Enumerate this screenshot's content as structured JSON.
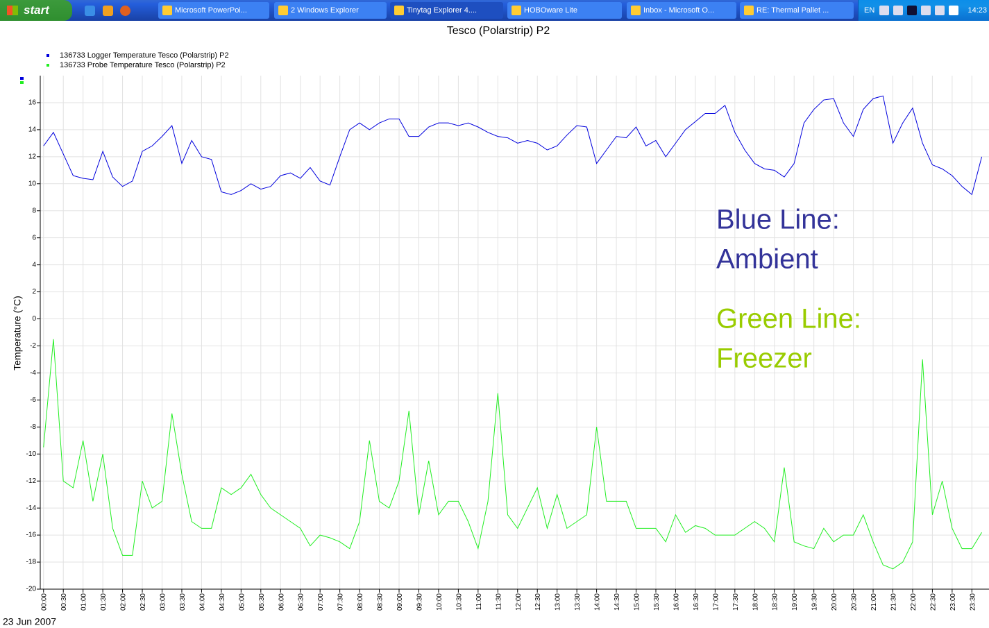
{
  "taskbar": {
    "start": "start",
    "tasks": [
      "Microsoft PowerPoi...",
      "2 Windows Explorer",
      "Tinytag Explorer 4....",
      "HOBOware Lite",
      "Inbox - Microsoft O...",
      "RE: Thermal Pallet ..."
    ],
    "language": "EN",
    "clock": "14:23"
  },
  "chart_data": {
    "type": "line",
    "title": "Tesco (Polarstrip) P2",
    "y_label": "Temperature (°C)",
    "date_label": "23 Jun 2007",
    "annotations": [
      {
        "text": [
          "Blue Line:",
          "Ambient"
        ],
        "color": "#333399"
      },
      {
        "text": [
          "Green Line:",
          "Freezer"
        ],
        "color": "#99cc00"
      }
    ],
    "x": [
      0,
      15,
      30,
      45,
      60,
      75,
      90,
      105,
      120,
      135,
      150,
      165,
      180,
      195,
      210,
      225,
      240,
      255,
      270,
      285,
      300,
      315,
      330,
      345,
      360,
      375,
      390,
      405,
      420,
      435,
      450,
      465,
      480,
      495,
      510,
      525,
      540,
      555,
      570,
      585,
      600,
      615,
      630,
      645,
      660,
      675,
      690,
      705,
      720,
      735,
      750,
      765,
      780,
      795,
      810,
      825,
      840,
      855,
      870,
      885,
      900,
      915,
      930,
      945,
      960,
      975,
      990,
      1005,
      1020,
      1035,
      1050,
      1065,
      1080,
      1095,
      1110,
      1125,
      1140,
      1155,
      1170,
      1185,
      1200,
      1215,
      1230,
      1245,
      1260,
      1275,
      1290,
      1305,
      1320,
      1335,
      1350,
      1365,
      1380,
      1395,
      1410,
      1425
    ],
    "series": [
      {
        "name": "136733 Logger Temperature Tesco (Polarstrip) P2",
        "color": "#0000dd",
        "values": [
          12.8,
          13.8,
          12.2,
          10.6,
          10.4,
          10.3,
          12.4,
          10.5,
          9.8,
          10.2,
          12.4,
          12.8,
          13.5,
          14.3,
          11.5,
          13.2,
          12.0,
          11.8,
          9.4,
          9.2,
          9.5,
          10,
          9.6,
          9.8,
          10.6,
          10.8,
          10.4,
          11.2,
          10.2,
          9.9,
          12,
          14,
          14.5,
          14,
          14.5,
          14.8,
          14.8,
          13.5,
          13.5,
          14.2,
          14.5,
          14.5,
          14.3,
          14.5,
          14.2,
          13.8,
          13.5,
          13.4,
          13.0,
          13.2,
          13.0,
          12.5,
          12.8,
          13.6,
          14.3,
          14.2,
          11.5,
          12.5,
          13.5,
          13.4,
          14.2,
          12.8,
          13.2,
          12.0,
          13.0,
          14.0,
          14.6,
          15.2,
          15.2,
          15.8,
          13.8,
          12.5,
          11.5,
          11.1,
          11.0,
          10.5,
          11.5,
          14.5,
          15.5,
          16.2,
          16.3,
          14.5,
          13.5,
          15.5,
          16.3,
          16.5,
          13.0,
          14.5,
          15.6,
          13.0,
          11.4,
          11.1,
          10.6,
          9.8,
          9.2,
          12.0
        ]
      },
      {
        "name": "136733 Probe Temperature Tesco (Polarstrip) P2",
        "color": "#22ee22",
        "values": [
          -9.5,
          -1.5,
          -12,
          -12.5,
          -9,
          -13.5,
          -10,
          -15.5,
          -17.5,
          -17.5,
          -12,
          -14,
          -13.5,
          -7,
          -11.5,
          -15,
          -15.5,
          -15.5,
          -12.5,
          -13,
          -12.5,
          -11.5,
          -13,
          -14,
          -14.5,
          -15,
          -15.5,
          -16.8,
          -16,
          -16.2,
          -16.5,
          -17,
          -15,
          -9,
          -13.5,
          -14,
          -12,
          -6.8,
          -14.5,
          -10.5,
          -14.5,
          -13.5,
          -13.5,
          -15,
          -17,
          -13.5,
          -5.5,
          -14.5,
          -15.5,
          -14,
          -12.5,
          -15.5,
          -13,
          -15.5,
          -15,
          -14.5,
          -8,
          -13.5,
          -13.5,
          -13.5,
          -15.5,
          -15.5,
          -15.5,
          -16.5,
          -14.5,
          -15.8,
          -15.3,
          -15.5,
          -16,
          -16,
          -16,
          -15.5,
          -15,
          -15.5,
          -16.5,
          -11,
          -16.5,
          -16.8,
          -17,
          -15.5,
          -16.5,
          -16,
          -16,
          -14.5,
          -16.5,
          -18.2,
          -18.5,
          -18,
          -16.5,
          -3,
          -14.5,
          -12,
          -15.5,
          -17,
          -17,
          -15.8
        ]
      }
    ],
    "xlim": [
      -5,
      1436
    ],
    "xticks": [
      {
        "value": 0,
        "label": "00:00"
      },
      {
        "value": 30,
        "label": "00:30"
      },
      {
        "value": 60,
        "label": "01:00"
      },
      {
        "value": 90,
        "label": "01:30"
      },
      {
        "value": 120,
        "label": "02:00"
      },
      {
        "value": 150,
        "label": "02:30"
      },
      {
        "value": 180,
        "label": "03:00"
      },
      {
        "value": 210,
        "label": "03:30"
      },
      {
        "value": 240,
        "label": "04:00"
      },
      {
        "value": 270,
        "label": "04:30"
      },
      {
        "value": 300,
        "label": "05:00"
      },
      {
        "value": 330,
        "label": "05:30"
      },
      {
        "value": 360,
        "label": "06:00"
      },
      {
        "value": 390,
        "label": "06:30"
      },
      {
        "value": 420,
        "label": "07:00"
      },
      {
        "value": 450,
        "label": "07:30"
      },
      {
        "value": 480,
        "label": "08:00"
      },
      {
        "value": 510,
        "label": "08:30"
      },
      {
        "value": 540,
        "label": "09:00"
      },
      {
        "value": 570,
        "label": "09:30"
      },
      {
        "value": 600,
        "label": "10:00"
      },
      {
        "value": 630,
        "label": "10:30"
      },
      {
        "value": 660,
        "label": "11:00"
      },
      {
        "value": 690,
        "label": "11:30"
      },
      {
        "value": 720,
        "label": "12:00"
      },
      {
        "value": 750,
        "label": "12:30"
      },
      {
        "value": 780,
        "label": "13:00"
      },
      {
        "value": 810,
        "label": "13:30"
      },
      {
        "value": 840,
        "label": "14:00"
      },
      {
        "value": 870,
        "label": "14:30"
      },
      {
        "value": 900,
        "label": "15:00"
      },
      {
        "value": 930,
        "label": "15:30"
      },
      {
        "value": 960,
        "label": "16:00"
      },
      {
        "value": 990,
        "label": "16:30"
      },
      {
        "value": 1020,
        "label": "17:00"
      },
      {
        "value": 1050,
        "label": "17:30"
      },
      {
        "value": 1080,
        "label": "18:00"
      },
      {
        "value": 1110,
        "label": "18:30"
      },
      {
        "value": 1140,
        "label": "19:00"
      },
      {
        "value": 1170,
        "label": "19:30"
      },
      {
        "value": 1200,
        "label": "20:00"
      },
      {
        "value": 1230,
        "label": "20:30"
      },
      {
        "value": 1260,
        "label": "21:00"
      },
      {
        "value": 1290,
        "label": "21:30"
      },
      {
        "value": 1320,
        "label": "22:00"
      },
      {
        "value": 1350,
        "label": "22:30"
      },
      {
        "value": 1380,
        "label": "23:00"
      },
      {
        "value": 1410,
        "label": "23:30"
      }
    ],
    "ylim": [
      -20,
      18
    ],
    "yticks": [
      -20,
      -18,
      -16,
      -14,
      -12,
      -10,
      -8,
      -6,
      -4,
      -2,
      0,
      2,
      4,
      6,
      8,
      10,
      12,
      14,
      16
    ],
    "grid": true
  }
}
